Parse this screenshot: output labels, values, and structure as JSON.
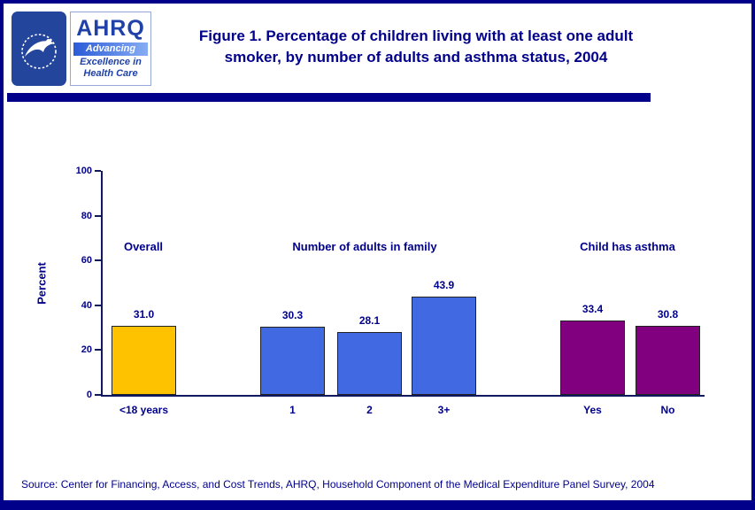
{
  "colors": {
    "navy": "#00008B",
    "gold": "#FFC200",
    "blue": "#4169E1",
    "purple": "#800080"
  },
  "header": {
    "title": "Figure 1. Percentage of children living with at least one adult smoker, by number of adults and asthma status, 2004"
  },
  "logos": {
    "hhs": "HHS logo",
    "ahrq_name": "AHRQ",
    "ahrq_tagline_1": "Advancing",
    "ahrq_tagline_2": "Excellence in",
    "ahrq_tagline_3": "Health Care"
  },
  "chart_data": {
    "type": "bar",
    "title": "Figure 1. Percentage of children living with at least one adult smoker, by number of adults and asthma status, 2004",
    "xlabel": "",
    "ylabel": "Percent",
    "ylim": [
      0,
      100
    ],
    "yticks": [
      0,
      20,
      40,
      60,
      80,
      100
    ],
    "grid": false,
    "legend": "none",
    "categories": [
      "<18 years",
      "1",
      "2",
      "3+",
      "Yes",
      "No"
    ],
    "values": [
      31.0,
      30.3,
      28.1,
      43.9,
      33.4,
      30.8
    ],
    "groups": [
      {
        "label": "Overall",
        "color": "#FFC200",
        "bars": [
          {
            "category": "<18 years",
            "value": 31.0,
            "value_label": "31.0"
          }
        ]
      },
      {
        "label": "Number of adults in family",
        "color": "#4169E1",
        "bars": [
          {
            "category": "1",
            "value": 30.3,
            "value_label": "30.3"
          },
          {
            "category": "2",
            "value": 28.1,
            "value_label": "28.1"
          },
          {
            "category": "3+",
            "value": 43.9,
            "value_label": "43.9"
          }
        ]
      },
      {
        "label": "Child has asthma",
        "color": "#800080",
        "bars": [
          {
            "category": "Yes",
            "value": 33.4,
            "value_label": "33.4"
          },
          {
            "category": "No",
            "value": 30.8,
            "value_label": "30.8"
          }
        ]
      }
    ]
  },
  "footer": {
    "source": "Source: Center for Financing, Access, and Cost Trends, AHRQ, Household Component of the Medical Expenditure Panel Survey, 2004"
  }
}
